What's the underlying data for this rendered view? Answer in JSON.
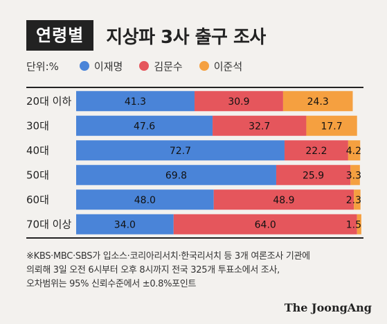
{
  "header": {
    "tag": "연령별",
    "title": "지상파 3사 출구 조사"
  },
  "legend": {
    "unit": "단위:%"
  },
  "colors": {
    "lee_jaemyung": "#4a84d8",
    "kim_moonsoo": "#e5565c",
    "lee_junseok": "#f5a040"
  },
  "chart_data": {
    "type": "bar",
    "stacked": true,
    "orientation": "horizontal",
    "categories": [
      "20대 이하",
      "30대",
      "40대",
      "50대",
      "60대",
      "70대 이상"
    ],
    "series": [
      {
        "name": "이재명",
        "values": [
          41.3,
          47.6,
          72.7,
          69.8,
          48.0,
          34.0
        ]
      },
      {
        "name": "김문수",
        "values": [
          30.9,
          32.7,
          22.2,
          25.9,
          48.9,
          64.0
        ]
      },
      {
        "name": "이준석",
        "values": [
          24.3,
          17.7,
          4.2,
          3.3,
          2.3,
          1.5
        ]
      }
    ],
    "value_labels": [
      [
        "41.3",
        "47.6",
        "72.7",
        "69.8",
        "48.0",
        "34.0"
      ],
      [
        "30.9",
        "32.7",
        "22.2",
        "25.9",
        "48.9",
        "64.0"
      ],
      [
        "24.3",
        "17.7",
        "4.2",
        "3.3",
        "2.3",
        "1.5"
      ]
    ],
    "xlim": [
      0,
      100
    ],
    "title": "",
    "xlabel": "",
    "ylabel": ""
  },
  "footnote": [
    "※KBS·MBC·SBS가 입소스·코리아리서치·한국리서치 등 3개 여론조사 기관에",
    "의뢰해 3일 오전 6시부터 오후 8시까지 전국 325개 투표소에서 조사,",
    "오차범위는 95% 신뢰수준에서 ±0.8%포인트"
  ],
  "logo": "The JoongAng"
}
